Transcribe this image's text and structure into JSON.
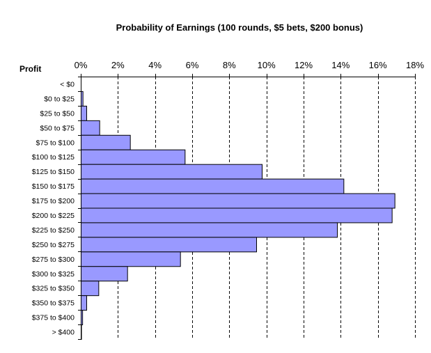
{
  "chart_data": {
    "type": "bar",
    "orientation": "horizontal",
    "title": "Probability of Earnings (100 rounds, $5 bets, $200 bonus)",
    "ylabel": "Profit",
    "xlabel": "",
    "x_axis_position": "top",
    "xlim": [
      0,
      18
    ],
    "x_tick_values": [
      0,
      2,
      4,
      6,
      8,
      10,
      12,
      14,
      16,
      18
    ],
    "x_tick_labels": [
      "0%",
      "2%",
      "4%",
      "6%",
      "8%",
      "10%",
      "12%",
      "14%",
      "16%",
      "18%"
    ],
    "grid": "vertical dashed",
    "legend": "none",
    "bar_color": "#9999ff",
    "categories": [
      "< $0",
      "$0 to $25",
      "$25 to $50",
      "$50 to $75",
      "$75 to $100",
      "$100 to $125",
      "$125 to $150",
      "$150 to $175",
      "$175 to $200",
      "$200 to $225",
      "$225 to $250",
      "$250 to $275",
      "$275 to $300",
      "$300 to $325",
      "$325 to $350",
      "$350 to $375",
      "$375 to $400",
      "> $400"
    ],
    "values": [
      0.0,
      0.1,
      0.3,
      1.0,
      2.65,
      5.6,
      9.75,
      14.15,
      16.9,
      16.75,
      13.8,
      9.45,
      5.35,
      2.5,
      0.95,
      0.3,
      0.08,
      0.02
    ]
  }
}
